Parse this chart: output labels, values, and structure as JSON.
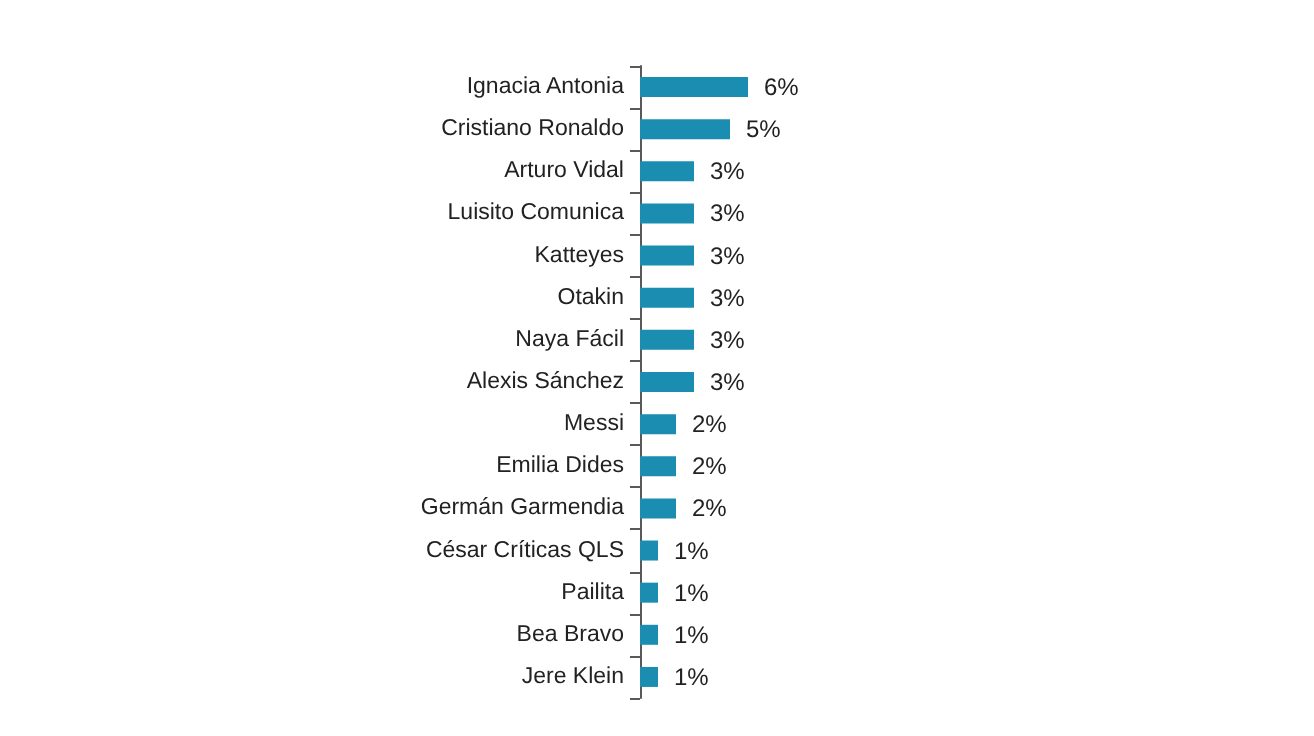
{
  "chart_data": {
    "type": "bar",
    "orientation": "horizontal",
    "categories": [
      "Ignacia Antonia",
      "Cristiano Ronaldo",
      "Arturo Vidal",
      "Luisito Comunica",
      "Katteyes",
      "Otakin",
      "Naya Fácil",
      "Alexis Sánchez",
      "Messi",
      "Emilia Dides",
      "Germán Garmendia",
      "César Críticas QLS",
      "Pailita",
      "Bea Bravo",
      "Jere Klein"
    ],
    "values": [
      6,
      5,
      3,
      3,
      3,
      3,
      3,
      3,
      2,
      2,
      2,
      1,
      1,
      1,
      1
    ],
    "value_labels": [
      "6%",
      "5%",
      "3%",
      "3%",
      "3%",
      "3%",
      "3%",
      "3%",
      "2%",
      "2%",
      "2%",
      "1%",
      "1%",
      "1%",
      "1%"
    ],
    "color": "#1b8db0",
    "grid": false
  }
}
